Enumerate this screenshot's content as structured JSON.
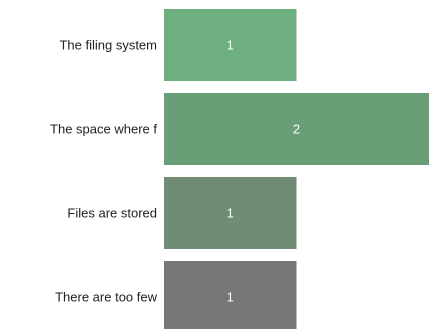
{
  "chart_data": {
    "type": "bar",
    "orientation": "horizontal",
    "categories": [
      "The filing system",
      "The space where f",
      "Files are stored",
      "There are too few"
    ],
    "values": [
      1,
      2,
      1,
      1
    ],
    "xlim": [
      0,
      2
    ],
    "colors": [
      "#6daf7e",
      "#6a9e77",
      "#718c74",
      "#777777"
    ],
    "title": "",
    "xlabel": "",
    "ylabel": "",
    "grid": false,
    "legend": "none"
  }
}
